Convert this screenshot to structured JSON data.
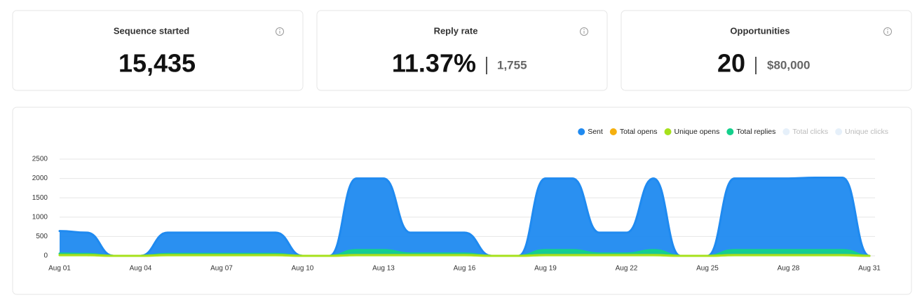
{
  "cards": [
    {
      "title": "Sequence started",
      "value": "15,435"
    },
    {
      "title": "Reply rate",
      "value": "11.37%",
      "secondary": "1,755"
    },
    {
      "title": "Opportunities",
      "value": "20",
      "secondary": "$80,000"
    }
  ],
  "chart_data": {
    "type": "area",
    "categories": [
      "Aug 01",
      null,
      null,
      "Aug 04",
      null,
      null,
      "Aug 07",
      null,
      null,
      "Aug 10",
      null,
      null,
      "Aug 13",
      null,
      null,
      "Aug 16",
      null,
      null,
      "Aug 19",
      null,
      null,
      "Aug 22",
      null,
      null,
      "Aug 25",
      null,
      null,
      "Aug 28",
      null,
      null,
      "Aug 31"
    ],
    "series": [
      {
        "name": "Sent",
        "color": "#1f8af0",
        "values": [
          640,
          600,
          0,
          0,
          600,
          600,
          600,
          600,
          600,
          0,
          0,
          2000,
          2000,
          600,
          600,
          600,
          0,
          0,
          2000,
          2000,
          600,
          600,
          2000,
          0,
          0,
          2000,
          2000,
          2000,
          2020,
          2020,
          0
        ]
      },
      {
        "name": "Total opens",
        "color": "#f5b00f",
        "values": [
          20,
          20,
          0,
          0,
          20,
          20,
          20,
          20,
          20,
          0,
          0,
          20,
          20,
          20,
          20,
          20,
          0,
          0,
          20,
          20,
          20,
          20,
          20,
          0,
          0,
          20,
          20,
          20,
          20,
          20,
          0
        ]
      },
      {
        "name": "Unique opens",
        "color": "#a6e11b",
        "values": [
          15,
          15,
          0,
          0,
          15,
          15,
          15,
          15,
          15,
          0,
          0,
          15,
          15,
          15,
          15,
          15,
          0,
          0,
          15,
          15,
          15,
          15,
          15,
          0,
          0,
          15,
          15,
          15,
          15,
          15,
          0
        ]
      },
      {
        "name": "Total replies",
        "color": "#14d08c",
        "values": [
          60,
          50,
          0,
          0,
          50,
          50,
          50,
          50,
          50,
          0,
          0,
          150,
          150,
          60,
          60,
          60,
          0,
          0,
          150,
          150,
          60,
          60,
          150,
          0,
          0,
          150,
          150,
          150,
          150,
          150,
          0
        ]
      },
      {
        "name": "Total clicks",
        "color": "#e6f0fa",
        "hidden": true
      },
      {
        "name": "Unique clicks",
        "color": "#e6f0fa",
        "hidden": true
      }
    ],
    "ylim": [
      0,
      2500
    ],
    "yticks": [
      0,
      500,
      1000,
      1500,
      2000,
      2500
    ],
    "grid": true
  }
}
